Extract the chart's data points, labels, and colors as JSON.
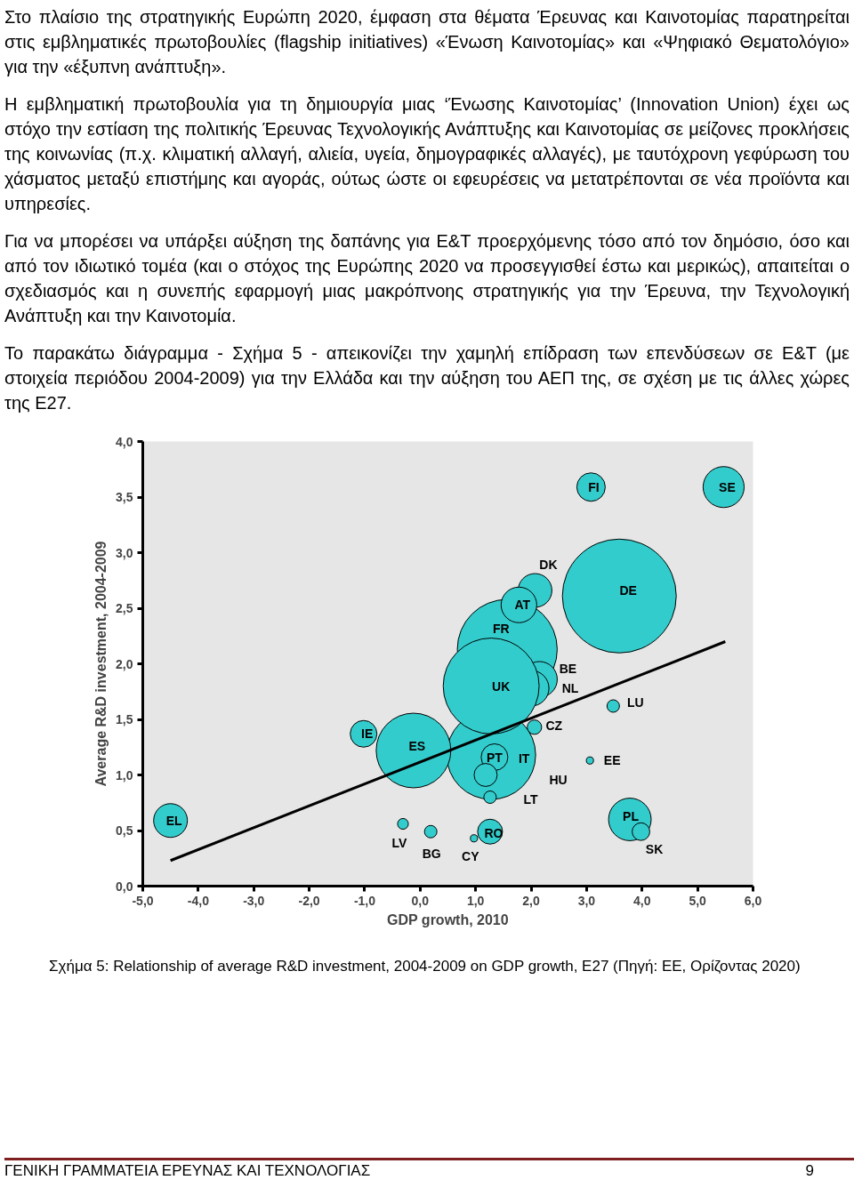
{
  "chart_data": {
    "type": "bubble",
    "xlabel": "GDP growth, 2010",
    "ylabel": "Average R&D investment, 2004-2009",
    "xlim": [
      -5,
      6
    ],
    "ylim": [
      0,
      4
    ],
    "xticks": [
      {
        "value": -5,
        "label": "-5,0"
      },
      {
        "value": -4,
        "label": "-4,0"
      },
      {
        "value": -3,
        "label": "-3,0"
      },
      {
        "value": -2,
        "label": "-2,0"
      },
      {
        "value": -1,
        "label": "-1,0"
      },
      {
        "value": 0,
        "label": "0,0"
      },
      {
        "value": 1,
        "label": "1,0"
      },
      {
        "value": 2,
        "label": "2,0"
      },
      {
        "value": 3,
        "label": "3,0"
      },
      {
        "value": 4,
        "label": "4,0"
      },
      {
        "value": 5,
        "label": "5,0"
      },
      {
        "value": 6,
        "label": "6,0"
      }
    ],
    "yticks": [
      {
        "value": 0,
        "label": "0,0"
      },
      {
        "value": 0.5,
        "label": "0,5"
      },
      {
        "value": 1,
        "label": "1,0"
      },
      {
        "value": 1.5,
        "label": "1,5"
      },
      {
        "value": 2,
        "label": "2,0"
      },
      {
        "value": 2.5,
        "label": "2,5"
      },
      {
        "value": 3,
        "label": "3,0"
      },
      {
        "value": 3.5,
        "label": "3,5"
      },
      {
        "value": 4,
        "label": "4,0"
      }
    ],
    "series": [
      {
        "color": "#33cccc",
        "x": [
          3.59,
          1.57,
          2.15,
          2.0,
          1.28,
          -0.12,
          1.28,
          2.06,
          2.07,
          1.78,
          1.34,
          1.18,
          1.26,
          -4.5,
          -1.02,
          -0.31,
          0.19,
          0.97,
          1.26,
          3.08,
          5.47,
          3.48,
          3.06,
          3.78,
          3.98
        ],
        "values": [
          2.61,
          2.13,
          1.86,
          1.78,
          1.18,
          1.22,
          1.8,
          1.43,
          2.66,
          2.53,
          1.16,
          1,
          0.8,
          0.59,
          1.37,
          0.56,
          0.49,
          0.43,
          0.49,
          3.59,
          3.59,
          1.62,
          1.13,
          0.6,
          0.49
        ],
        "sizes": [
          1,
          0.77,
          0.098,
          0.098,
          0.61,
          0.43,
          0.71,
          0.016,
          0.088,
          0.098,
          0.055,
          0.041,
          0.012,
          0.088,
          0.055,
          0.009,
          0.012,
          0.004,
          0.048,
          0.0625,
          0.13,
          0.012,
          0.004,
          0.14,
          0.024
        ]
      },
      {
        "type": "line",
        "color": "#000000",
        "x": [
          -4.5,
          5.5
        ],
        "values": [
          0.23,
          2.2
        ]
      }
    ],
    "annotations": [
      "Στο πλαίσιο της στρατηγικής Ευρώπη 2020, έμφαση στα θέματα Έρευνας και Καινοτομίας παρατηρείται στις εμβληματικές πρωτοβουλίες (flagship initiatives) «Ένωση Καινοτομίας» και «Ψηφιακό Θεματολόγιο» για την «έξυπνη ανάπτυξη».",
      "Η εμβληματική πρωτοβουλία για τη δημιουργία μιας ‘Ένωσης Καινοτομίας’ (Innovation Union) έχει ως στόχο την εστίαση της πολιτικής Έρευνας Τεχνολογικής Ανάπτυξης και Καινοτομίας σε μείζονες προκλήσεις της κοινωνίας (π.χ. κλιματική αλλαγή, αλιεία, υγεία, δημογραφικές αλλαγές), με ταυτόχρονη γεφύρωση του χάσματος μεταξύ επιστήμης και αγοράς, ούτως ώστε οι εφευρέσεις να μετατρέπονται σε νέα προϊόντα και υπηρεσίες.",
      "Για να μπορέσει να υπάρξει αύξηση της δαπάνης για Ε&Τ προερχόμενης τόσο από τον δημόσιο, όσο και από τον ιδιωτικό τομέα (και ο στόχος της Ευρώπης 2020 να προσεγγισθεί έστω και μερικώς), απαιτείται ο σχεδιασμός και η συνεπής εφαρμογή μιας μακρόπνοης στρατηγικής για την Έρευνα, την Τεχνολογική Ανάπτυξη και την Καινοτομία.",
      "Το παρακάτω διάγραμμα - Σχήμα 5 - απεικονίζει την χαμηλή επίδραση των επενδύσεων σε Ε&Τ (με στοιχεία περιόδου 2004-2009)  για την Ελλάδα και την αύξηση του ΑΕΠ της, σε σχέση με τις άλλες χώρες της Ε27.",
      "Σχήμα 5: Relationship of average R&D investment, 2004-2009 on GDP growth, E27 (Πηγή: ΕΕ, Ορίζοντας 2020)",
      "ΓΕΝΙΚΗ ΓΡΑΜΜΑΤΕΙΑ ΕΡΕΥΝΑΣ ΚΑΙ ΤΕΧΝΟΛΟΓΙΑΣ",
      "9",
      "HU",
      "LT",
      {
        "text": "DE",
        "x": 3.59,
        "y": 2.61
      },
      {
        "text": "FR",
        "x": 1.57,
        "y": 2.13
      },
      {
        "text": "BE",
        "x": 2.15,
        "y": 1.86
      },
      {
        "text": "NL",
        "x": 2.0,
        "y": 1.78
      },
      {
        "text": "IT",
        "x": 1.28,
        "y": 1.18
      },
      {
        "text": "ES",
        "x": -0.12,
        "y": 1.22
      },
      {
        "text": "UK",
        "x": 1.28,
        "y": 1.8
      },
      {
        "text": "CZ",
        "x": 2.06,
        "y": 1.43
      },
      {
        "text": "DK",
        "x": 2.07,
        "y": 2.66
      },
      {
        "text": "AT",
        "x": 1.78,
        "y": 2.53
      },
      {
        "text": "PT",
        "x": 1.34,
        "y": 1.16
      },
      {
        "text": "EL",
        "x": -4.5,
        "y": 0.59
      },
      {
        "text": "IE",
        "x": -1.02,
        "y": 1.37
      },
      {
        "text": "LV",
        "x": -0.31,
        "y": 0.56
      },
      {
        "text": "BG",
        "x": 0.19,
        "y": 0.49
      },
      {
        "text": "CY",
        "x": 0.97,
        "y": 0.43
      },
      {
        "text": "RO",
        "x": 1.26,
        "y": 0.49
      },
      {
        "text": "FI",
        "x": 3.08,
        "y": 3.59
      },
      {
        "text": "SE",
        "x": 5.47,
        "y": 3.59
      },
      {
        "text": "LU",
        "x": 3.48,
        "y": 1.62
      },
      {
        "text": "EE",
        "x": 3.06,
        "y": 1.13
      },
      {
        "text": "PL",
        "x": 3.78,
        "y": 0.6
      },
      {
        "text": "SK",
        "x": 3.98,
        "y": 0.49
      }
    ]
  }
}
